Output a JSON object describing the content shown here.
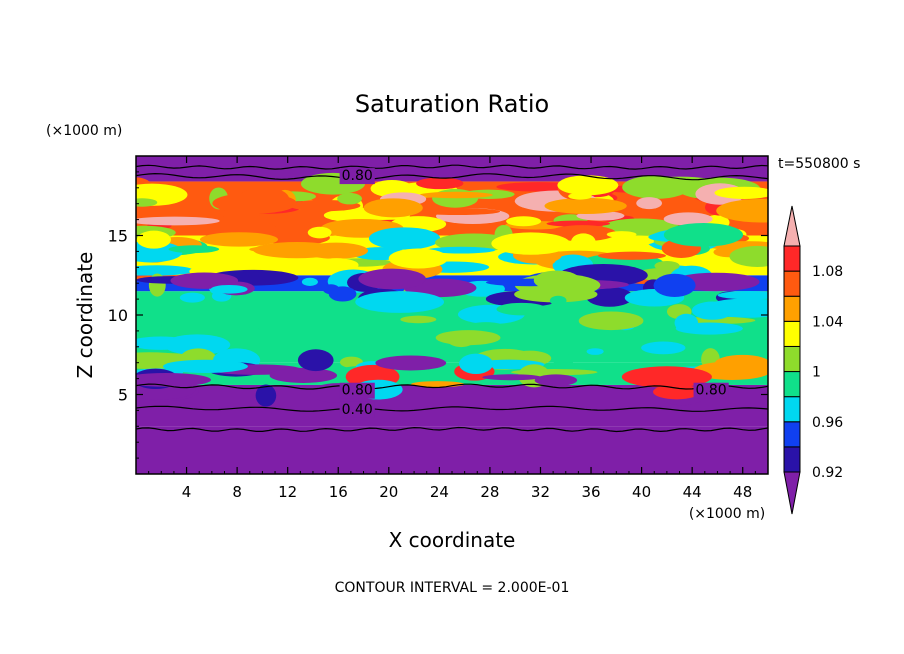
{
  "chart_data": {
    "type": "heatmap",
    "title": "Saturation Ratio",
    "xlabel": "X coordinate",
    "ylabel": "Z coordinate",
    "x_units": "(×1000 m)",
    "y_units": "(×1000 m)",
    "time_label": "t=550800 s",
    "footer": "CONTOUR INTERVAL = 2.000E-01",
    "xlim": [
      0,
      50
    ],
    "ylim": [
      0,
      20
    ],
    "x_ticks": [
      4,
      8,
      12,
      16,
      20,
      24,
      28,
      32,
      36,
      40,
      44,
      48
    ],
    "y_ticks": [
      5,
      10,
      15
    ],
    "contour_labels": [
      {
        "text": "0.80",
        "x": 17.5,
        "z": 18.8
      },
      {
        "text": "0.80",
        "x": 17.5,
        "z": 5.3
      },
      {
        "text": "0.40",
        "x": 17.5,
        "z": 4.1
      },
      {
        "text": "0.80",
        "x": 45.5,
        "z": 5.3
      }
    ],
    "colorbar": {
      "levels": [
        0.92,
        0.94,
        0.96,
        0.98,
        1.0,
        1.02,
        1.04,
        1.06,
        1.08,
        1.1
      ],
      "tick_labels": [
        "0.92",
        "0.96",
        "1",
        "1.04",
        "1.08"
      ],
      "colors": [
        "#7f1fa8",
        "#2a12a8",
        "#1040f0",
        "#00d8f0",
        "#10e08a",
        "#8edc2c",
        "#ffff00",
        "#ffa000",
        "#ff5a10",
        "#ff2828",
        "#f5b0b0"
      ]
    },
    "layers": [
      {
        "z_bottom": 0,
        "z_top": 3,
        "value": 0.4
      },
      {
        "z_bottom": 3,
        "z_top": 5.6,
        "value": 0.7
      },
      {
        "z_bottom": 5.6,
        "z_top": 7,
        "value": 0.99
      },
      {
        "z_bottom": 7,
        "z_top": 11.5,
        "value": 0.99
      },
      {
        "z_bottom": 11.5,
        "z_top": 12.5,
        "value": 0.95
      },
      {
        "z_bottom": 12.5,
        "z_top": 15,
        "value": 1.03
      },
      {
        "z_bottom": 15,
        "z_top": 18.4,
        "value": 1.07
      },
      {
        "z_bottom": 18.4,
        "z_top": 20,
        "value": 0.7
      }
    ]
  }
}
